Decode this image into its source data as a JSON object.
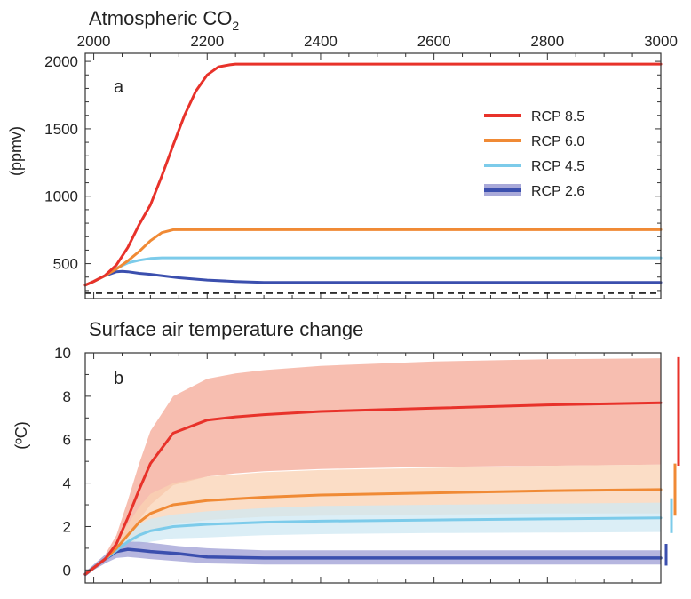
{
  "colors": {
    "rcp85": "#e8322a",
    "rcp60": "#f08a35",
    "rcp45": "#7ccbea",
    "rcp26": "#3b4fae",
    "rcp85_band": "#f4a896",
    "rcp60_band": "#f9d2b3",
    "rcp45_band": "#cfe8f3",
    "rcp26_band": "#a9a9d9"
  },
  "chart_data": [
    {
      "type": "line",
      "panel_label": "a",
      "title": "Atmospheric CO2",
      "title_main": "Atmospheric CO",
      "title_sub": "2",
      "ylabel": "(ppmv)",
      "xlabel": "",
      "xlim": [
        1985,
        3000
      ],
      "ylim": [
        240,
        2060
      ],
      "xticks": [
        2000,
        2200,
        2400,
        2600,
        2800,
        3000
      ],
      "xtick_labels": [
        "2000",
        "2200",
        "2400",
        "2600",
        "2800",
        "3000"
      ],
      "yticks": [
        500,
        1000,
        1500,
        2000
      ],
      "ytick_labels": [
        "500",
        "1000",
        "1500",
        "2000"
      ],
      "xaxis_labels_position": "top",
      "legend": {
        "position": "top-right",
        "entries": [
          "RCP 8.5",
          "RCP 6.0",
          "RCP 4.5",
          "RCP 2.6"
        ]
      },
      "reference_line": {
        "y": 280,
        "style": "dashed"
      },
      "series": [
        {
          "name": "RCP 8.5",
          "color_key": "rcp85",
          "x": [
            1985,
            2000,
            2020,
            2040,
            2060,
            2080,
            2100,
            2120,
            2140,
            2160,
            2180,
            2200,
            2220,
            2240,
            2250,
            2300,
            2500,
            3000
          ],
          "y": [
            340,
            368,
            412,
            490,
            620,
            790,
            936,
            1150,
            1380,
            1600,
            1780,
            1900,
            1960,
            1975,
            1980,
            1980,
            1980,
            1980
          ]
        },
        {
          "name": "RCP 6.0",
          "color_key": "rcp60",
          "x": [
            1985,
            2000,
            2020,
            2040,
            2060,
            2080,
            2100,
            2120,
            2140,
            2150,
            2200,
            3000
          ],
          "y": [
            340,
            368,
            410,
            460,
            520,
            590,
            670,
            730,
            752,
            752,
            752,
            752
          ]
        },
        {
          "name": "RCP 4.5",
          "color_key": "rcp45",
          "x": [
            1985,
            2000,
            2020,
            2040,
            2060,
            2080,
            2100,
            2120,
            2150,
            3000
          ],
          "y": [
            340,
            368,
            412,
            465,
            505,
            525,
            538,
            543,
            543,
            543
          ]
        },
        {
          "name": "RCP 2.6",
          "color_key": "rcp26",
          "x": [
            1985,
            2000,
            2020,
            2040,
            2050,
            2060,
            2080,
            2100,
            2150,
            2200,
            2250,
            2300,
            3000
          ],
          "y": [
            340,
            368,
            410,
            440,
            443,
            440,
            428,
            421,
            395,
            378,
            367,
            361,
            361
          ]
        }
      ]
    },
    {
      "type": "line",
      "panel_label": "b",
      "title": "Surface air temperature change",
      "ylabel": "(ºC)",
      "xlabel": "",
      "xlim": [
        1985,
        3000
      ],
      "ylim": [
        -0.6,
        10
      ],
      "xticks": [
        2000,
        2200,
        2400,
        2600,
        2800,
        3000
      ],
      "yticks": [
        0,
        2,
        4,
        6,
        8,
        10
      ],
      "ytick_labels": [
        "0",
        "2",
        "4",
        "6",
        "8",
        "10"
      ],
      "series": [
        {
          "name": "RCP 8.5",
          "color_key": "rcp85",
          "x": [
            1985,
            2000,
            2020,
            2040,
            2060,
            2080,
            2100,
            2140,
            2200,
            2250,
            2300,
            2400,
            2600,
            2800,
            3000
          ],
          "y": [
            -0.2,
            0.1,
            0.5,
            1.2,
            2.4,
            3.7,
            4.9,
            6.3,
            6.9,
            7.05,
            7.15,
            7.3,
            7.45,
            7.6,
            7.7
          ],
          "low": [
            -0.3,
            0.0,
            0.3,
            0.8,
            1.5,
            2.3,
            3.0,
            3.9,
            4.3,
            4.45,
            4.55,
            4.65,
            4.75,
            4.8,
            4.85
          ],
          "high": [
            -0.1,
            0.25,
            0.7,
            1.6,
            3.2,
            4.9,
            6.4,
            8.0,
            8.8,
            9.05,
            9.2,
            9.4,
            9.6,
            9.7,
            9.75
          ]
        },
        {
          "name": "RCP 6.0",
          "color_key": "rcp60",
          "x": [
            1985,
            2000,
            2020,
            2040,
            2060,
            2080,
            2100,
            2140,
            2200,
            2300,
            2400,
            2600,
            2800,
            3000
          ],
          "y": [
            -0.2,
            0.1,
            0.5,
            1.0,
            1.6,
            2.2,
            2.6,
            3.0,
            3.2,
            3.35,
            3.45,
            3.55,
            3.65,
            3.7
          ],
          "low": [
            -0.3,
            0.0,
            0.35,
            0.7,
            1.1,
            1.5,
            1.8,
            2.1,
            2.3,
            2.45,
            2.5,
            2.55,
            2.6,
            2.6
          ],
          "high": [
            -0.1,
            0.25,
            0.65,
            1.3,
            2.1,
            2.9,
            3.5,
            4.0,
            4.3,
            4.5,
            4.6,
            4.7,
            4.8,
            4.85
          ]
        },
        {
          "name": "RCP 4.5",
          "color_key": "rcp45",
          "x": [
            1985,
            2000,
            2020,
            2040,
            2060,
            2080,
            2100,
            2140,
            2200,
            2300,
            2400,
            2600,
            2800,
            3000
          ],
          "y": [
            -0.2,
            0.1,
            0.5,
            0.9,
            1.3,
            1.6,
            1.8,
            2.0,
            2.1,
            2.2,
            2.25,
            2.3,
            2.35,
            2.4
          ],
          "low": [
            -0.3,
            0.0,
            0.35,
            0.65,
            0.95,
            1.15,
            1.3,
            1.45,
            1.5,
            1.6,
            1.65,
            1.7,
            1.72,
            1.75
          ],
          "high": [
            -0.1,
            0.25,
            0.65,
            1.15,
            1.65,
            2.1,
            2.35,
            2.55,
            2.7,
            2.85,
            2.95,
            3.0,
            3.05,
            3.1
          ]
        },
        {
          "name": "RCP 2.6",
          "color_key": "rcp26",
          "x": [
            1985,
            2000,
            2020,
            2040,
            2060,
            2080,
            2100,
            2150,
            2200,
            2300,
            2400,
            2600,
            2800,
            3000
          ],
          "y": [
            -0.2,
            0.1,
            0.5,
            0.85,
            0.95,
            0.9,
            0.85,
            0.75,
            0.6,
            0.55,
            0.55,
            0.55,
            0.55,
            0.55
          ],
          "low": [
            -0.3,
            0.0,
            0.3,
            0.55,
            0.6,
            0.55,
            0.5,
            0.4,
            0.3,
            0.25,
            0.25,
            0.25,
            0.25,
            0.25
          ],
          "high": [
            -0.1,
            0.25,
            0.7,
            1.15,
            1.3,
            1.3,
            1.25,
            1.1,
            1.0,
            0.9,
            0.9,
            0.9,
            0.9,
            0.9
          ]
        }
      ],
      "range_bars_at_3000": [
        {
          "series": "RCP 8.5",
          "color_key": "rcp85",
          "low": 4.8,
          "high": 9.8
        },
        {
          "series": "RCP 6.0",
          "color_key": "rcp60",
          "low": 2.5,
          "high": 4.9
        },
        {
          "series": "RCP 4.5",
          "color_key": "rcp45",
          "low": 1.7,
          "high": 3.3
        },
        {
          "series": "RCP 2.6",
          "color_key": "rcp26",
          "low": 0.2,
          "high": 1.2
        }
      ]
    }
  ]
}
